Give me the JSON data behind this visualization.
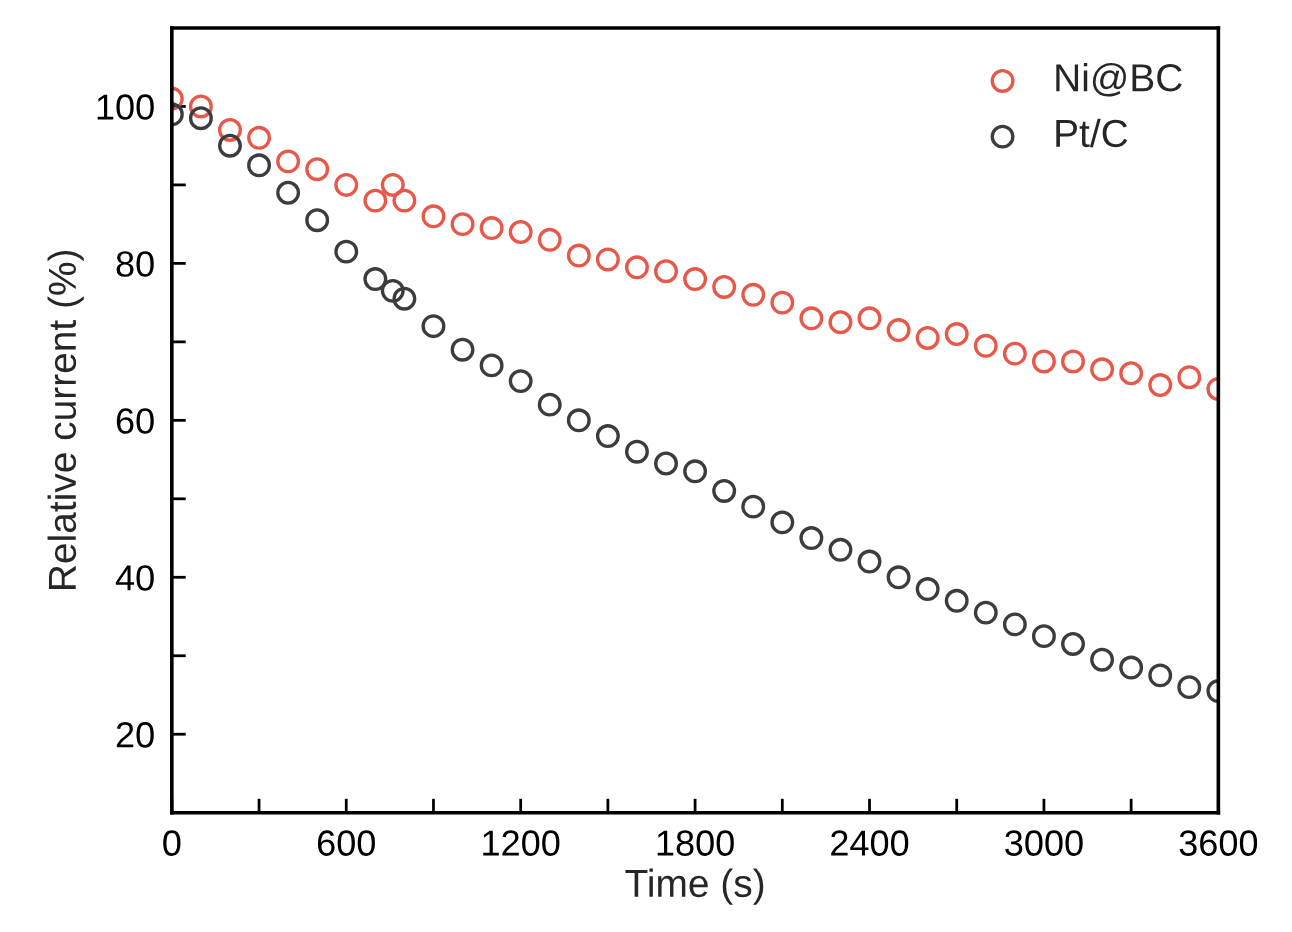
{
  "chart_data": {
    "type": "scatter",
    "xlabel": "Time (s)",
    "ylabel": "Relative current (%)",
    "x": [
      0,
      100,
      200,
      300,
      400,
      500,
      600,
      700,
      760,
      800,
      900,
      1000,
      1100,
      1200,
      1300,
      1400,
      1500,
      1600,
      1700,
      1800,
      1900,
      2000,
      2100,
      2200,
      2300,
      2400,
      2500,
      2600,
      2700,
      2800,
      2900,
      3000,
      3100,
      3200,
      3300,
      3400,
      3500,
      3600
    ],
    "series": [
      {
        "name": "Ni@BC",
        "color": "#e8584a",
        "values": [
          101,
          100,
          97,
          96,
          93,
          92,
          90,
          88,
          90,
          88,
          86,
          85,
          84.5,
          84,
          83,
          81,
          80.5,
          79.5,
          79,
          78,
          77,
          76,
          75,
          73,
          72.5,
          73,
          71.5,
          70.5,
          71,
          69.5,
          68.5,
          67.5,
          67.5,
          66.5,
          66,
          64.5,
          65.5,
          64
        ]
      },
      {
        "name": "Pt/C",
        "color": "#3c3c3c",
        "values": [
          99,
          98.5,
          95,
          92.5,
          89,
          85.5,
          81.5,
          78,
          76.5,
          75.5,
          72,
          69,
          67,
          65,
          62,
          60,
          58,
          56,
          54.5,
          53.5,
          51,
          49,
          47,
          45,
          43.5,
          42,
          40,
          38.5,
          37,
          35.5,
          34,
          32.5,
          31.5,
          29.5,
          28.5,
          27.5,
          26,
          25.5
        ]
      }
    ],
    "xlim": [
      0,
      3600
    ],
    "ylim": [
      10,
      110
    ],
    "xticks": [
      0,
      {
        "value": 300,
        "label": null
      },
      600,
      {
        "value": 900,
        "label": null
      },
      1200,
      {
        "value": 1500,
        "label": null
      },
      1800,
      {
        "value": 2100,
        "label": null
      },
      2400,
      {
        "value": 2700,
        "label": null
      },
      3000,
      {
        "value": 3300,
        "label": null
      },
      3600
    ],
    "yticks": [
      20,
      {
        "value": 30,
        "label": null
      },
      40,
      {
        "value": 50,
        "label": null
      },
      60,
      {
        "value": 70,
        "label": null
      },
      80,
      {
        "value": 90,
        "label": null
      },
      100
    ],
    "marker": "circle",
    "legend": "top right",
    "grid": false
  }
}
